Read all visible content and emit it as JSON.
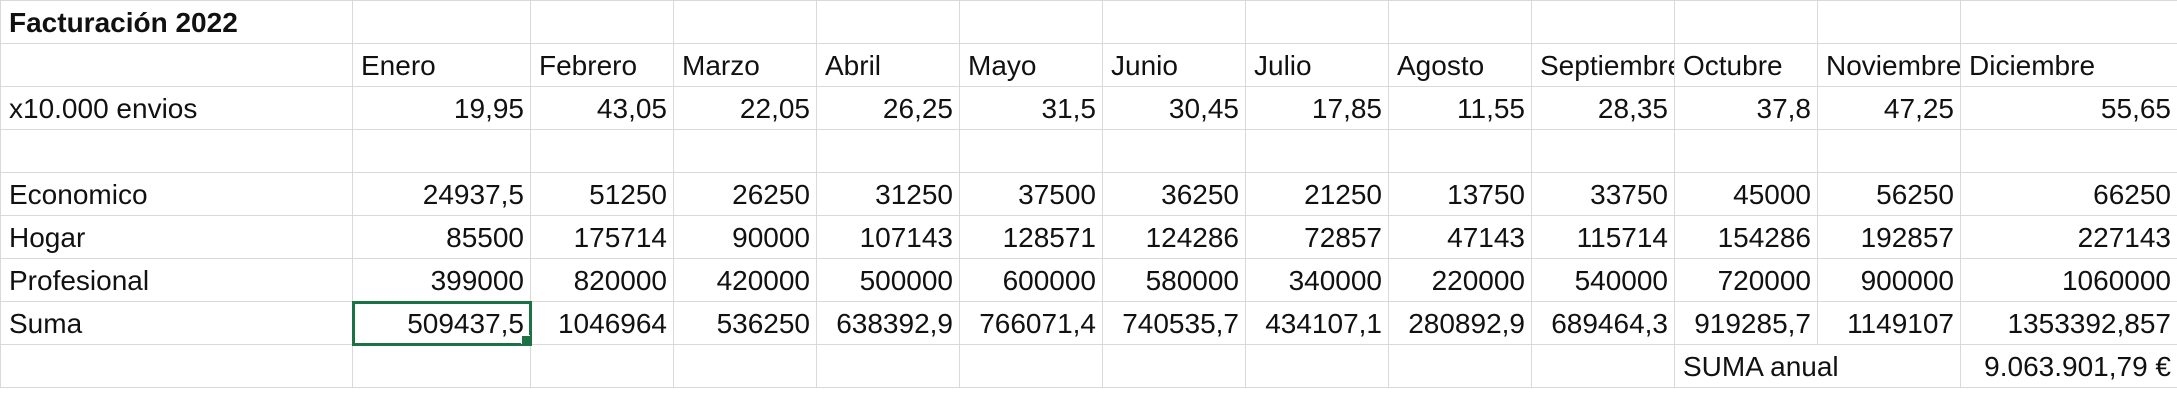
{
  "title": "Facturación 2022",
  "months": [
    "Enero",
    "Febrero",
    "Marzo",
    "Abril",
    "Mayo",
    "Junio",
    "Julio",
    "Agosto",
    "Septiembre",
    "Octubre",
    "Noviembre",
    "Diciembre"
  ],
  "rows": [
    {
      "label": "x10.000 envios",
      "values": [
        "19,95",
        "43,05",
        "22,05",
        "26,25",
        "31,5",
        "30,45",
        "17,85",
        "11,55",
        "28,35",
        "37,8",
        "47,25",
        "55,65"
      ]
    },
    {
      "label": "Economico",
      "values": [
        "24937,5",
        "51250",
        "26250",
        "31250",
        "37500",
        "36250",
        "21250",
        "13750",
        "33750",
        "45000",
        "56250",
        "66250"
      ]
    },
    {
      "label": "Hogar",
      "values": [
        "85500",
        "175714",
        "90000",
        "107143",
        "128571",
        "124286",
        "72857",
        "47143",
        "115714",
        "154286",
        "192857",
        "227143"
      ]
    },
    {
      "label": "Profesional",
      "values": [
        "399000",
        "820000",
        "420000",
        "500000",
        "600000",
        "580000",
        "340000",
        "220000",
        "540000",
        "720000",
        "900000",
        "1060000"
      ]
    },
    {
      "label": "Suma",
      "values": [
        "509437,5",
        "1046964",
        "536250",
        "638392,9",
        "766071,4",
        "740535,7",
        "434107,1",
        "280892,9",
        "689464,3",
        "919285,7",
        "1149107",
        "1353392,857"
      ]
    }
  ],
  "annual_label": "SUMA anual",
  "annual_value": "9.063.901,79 €",
  "selected_cell": "B8"
}
